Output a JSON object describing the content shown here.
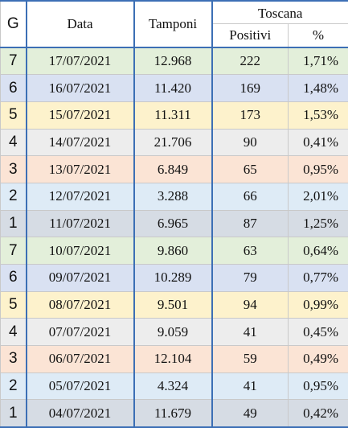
{
  "headers": {
    "g": "G",
    "data": "Data",
    "tamponi": "Tamponi",
    "region": "Toscana",
    "positivi": "Positivi",
    "percent": "%"
  },
  "rows": [
    {
      "g": "7",
      "data": "17/07/2021",
      "tamponi": "12.968",
      "positivi": "222",
      "pct": "1,71%"
    },
    {
      "g": "6",
      "data": "16/07/2021",
      "tamponi": "11.420",
      "positivi": "169",
      "pct": "1,48%"
    },
    {
      "g": "5",
      "data": "15/07/2021",
      "tamponi": "11.311",
      "positivi": "173",
      "pct": "1,53%"
    },
    {
      "g": "4",
      "data": "14/07/2021",
      "tamponi": "21.706",
      "positivi": "90",
      "pct": "0,41%"
    },
    {
      "g": "3",
      "data": "13/07/2021",
      "tamponi": "6.849",
      "positivi": "65",
      "pct": "0,95%"
    },
    {
      "g": "2",
      "data": "12/07/2021",
      "tamponi": "3.288",
      "positivi": "66",
      "pct": "2,01%"
    },
    {
      "g": "1",
      "data": "11/07/2021",
      "tamponi": "6.965",
      "positivi": "87",
      "pct": "1,25%"
    },
    {
      "g": "7",
      "data": "10/07/2021",
      "tamponi": "9.860",
      "positivi": "63",
      "pct": "0,64%"
    },
    {
      "g": "6",
      "data": "09/07/2021",
      "tamponi": "10.289",
      "positivi": "79",
      "pct": "0,77%"
    },
    {
      "g": "5",
      "data": "08/07/2021",
      "tamponi": "9.501",
      "positivi": "94",
      "pct": "0,99%"
    },
    {
      "g": "4",
      "data": "07/07/2021",
      "tamponi": "9.059",
      "positivi": "41",
      "pct": "0,45%"
    },
    {
      "g": "3",
      "data": "06/07/2021",
      "tamponi": "12.104",
      "positivi": "59",
      "pct": "0,49%"
    },
    {
      "g": "2",
      "data": "05/07/2021",
      "tamponi": "4.324",
      "positivi": "41",
      "pct": "0,95%"
    },
    {
      "g": "1",
      "data": "04/07/2021",
      "tamponi": "11.679",
      "positivi": "49",
      "pct": "0,42%"
    }
  ]
}
